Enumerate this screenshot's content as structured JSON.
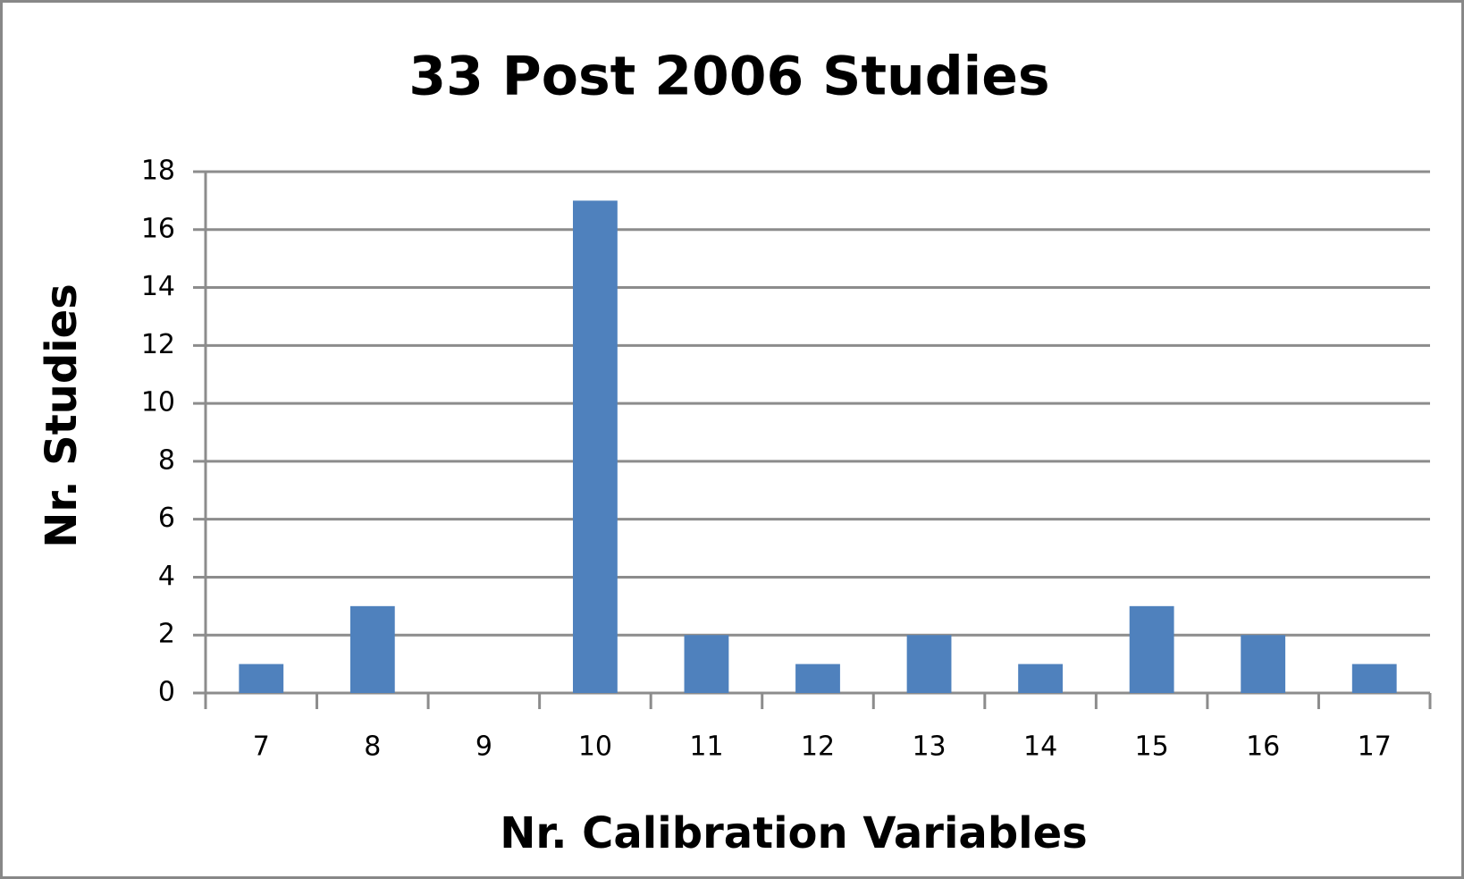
{
  "chart_data": {
    "type": "bar",
    "title": "33 Post 2006 Studies",
    "x_label": "Nr. Calibration Variables",
    "y_label": "Nr. Studies",
    "categories": [
      "7",
      "8",
      "9",
      "10",
      "11",
      "12",
      "13",
      "14",
      "15",
      "16",
      "17"
    ],
    "values": [
      1,
      3,
      0,
      17,
      2,
      1,
      2,
      1,
      3,
      2,
      1
    ],
    "color": "#4f81bd",
    "ylim": [
      0,
      18
    ],
    "yticks": [
      0,
      2,
      4,
      6,
      8,
      10,
      12,
      14,
      16,
      18
    ],
    "grid": true
  }
}
